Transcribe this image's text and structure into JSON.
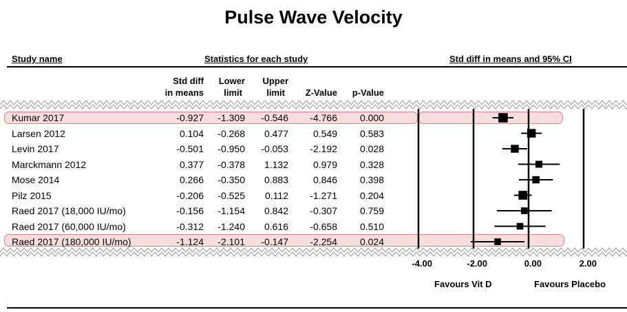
{
  "title": "Pulse Wave Velocity",
  "headers": {
    "study": "Study name",
    "stats_group": "Statistics for each study",
    "forest": "Std diff in means and 95% CI",
    "std_diff_1": "Std diff",
    "std_diff_2": "in means",
    "lower_1": "Lower",
    "lower_2": "limit",
    "upper_1": "Upper",
    "upper_2": "limit",
    "z": "Z-Value",
    "p": "p-Value"
  },
  "rows": [
    {
      "study": "Kumar 2017",
      "smd": "-0.927",
      "lower": "-1.309",
      "upper": "-0.546",
      "z": "-4.766",
      "p": "0.000"
    },
    {
      "study": "Larsen 2012",
      "smd": "0.104",
      "lower": "-0.268",
      "upper": "0.477",
      "z": "0.549",
      "p": "0.583"
    },
    {
      "study": "Levin 2017",
      "smd": "-0.501",
      "lower": "-0.950",
      "upper": "-0.053",
      "z": "-2.192",
      "p": "0.028"
    },
    {
      "study": "Marckmann 2012",
      "smd": "0.377",
      "lower": "-0.378",
      "upper": "1.132",
      "z": "0.979",
      "p": "0.328"
    },
    {
      "study": "Mose 2014",
      "smd": "0.266",
      "lower": "-0.350",
      "upper": "0.883",
      "z": "0.846",
      "p": "0.398"
    },
    {
      "study": "Pilz 2015",
      "smd": "-0.206",
      "lower": "-0.525",
      "upper": "0.112",
      "z": "-1.271",
      "p": "0.204"
    },
    {
      "study": "Raed 2017 (18,000 IU/mo)",
      "smd": "-0.156",
      "lower": "-1.154",
      "upper": "0.842",
      "z": "-0.307",
      "p": "0.759"
    },
    {
      "study": "Raed 2017 (60,000 IU/mo)",
      "smd": "-0.312",
      "lower": "-1.240",
      "upper": "0.616",
      "z": "-0.658",
      "p": "0.510"
    },
    {
      "study": "Raed 2017 (180,000 IU/mo)",
      "smd": "-1.124",
      "lower": "-2.101",
      "upper": "-0.147",
      "z": "-2.254",
      "p": "0.024"
    }
  ],
  "axis": {
    "ticks": [
      "-4.00",
      "-2.00",
      "0.00",
      "2.00"
    ]
  },
  "favours": {
    "left": "Favours Vit D",
    "right": "Favours Placebo"
  },
  "highlight_color": "#f0a0a0",
  "chart_data": {
    "type": "forest",
    "title": "Pulse Wave Velocity",
    "xlabel": "Std diff in means and 95% CI",
    "xlim": [
      -4,
      2
    ],
    "x_ticks": [
      -4,
      -2,
      0,
      2
    ],
    "reference_lines": [
      -2,
      0,
      2
    ],
    "categories": [
      "Kumar 2017",
      "Larsen 2012",
      "Levin 2017",
      "Marckmann 2012",
      "Mose 2014",
      "Pilz 2015",
      "Raed 2017 (18,000 IU/mo)",
      "Raed 2017 (60,000 IU/mo)",
      "Raed 2017 (180,000 IU/mo)"
    ],
    "values": [
      -0.927,
      0.104,
      -0.501,
      0.377,
      0.266,
      -0.206,
      -0.156,
      -0.312,
      -1.124
    ],
    "lower": [
      -1.309,
      -0.268,
      -0.95,
      -0.378,
      -0.35,
      -0.525,
      -1.154,
      -1.24,
      -2.101
    ],
    "upper": [
      -0.546,
      0.477,
      -0.053,
      1.132,
      0.883,
      0.112,
      0.842,
      0.616,
      -0.147
    ],
    "z_values": [
      -4.766,
      0.549,
      -2.192,
      0.979,
      0.846,
      -1.271,
      -0.307,
      -0.658,
      -2.254
    ],
    "p_values": [
      0.0,
      0.583,
      0.028,
      0.328,
      0.398,
      0.204,
      0.759,
      0.51,
      0.024
    ],
    "weights": [
      3.0,
      2.5,
      2.0,
      1.4,
      1.6,
      2.6,
      1.2,
      1.2,
      1.2
    ],
    "annotations": [
      "Favours Vit D",
      "Favours Placebo"
    ],
    "highlighted_rows": [
      0,
      8
    ]
  }
}
